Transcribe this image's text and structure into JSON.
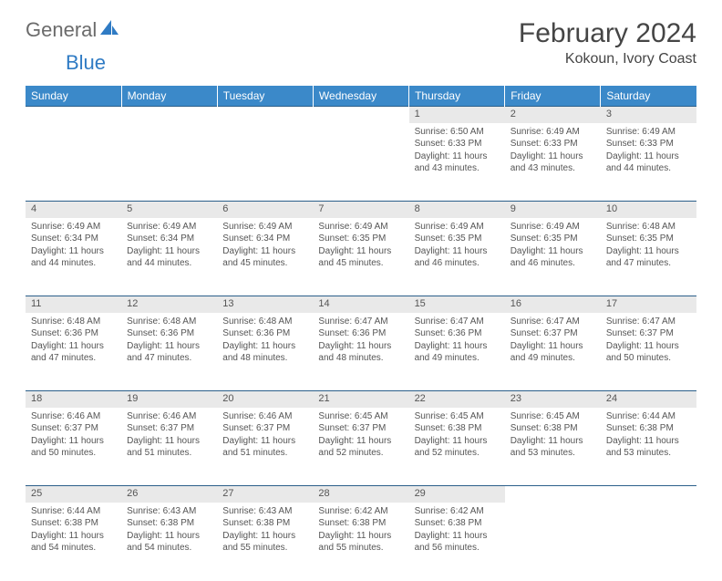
{
  "brand": {
    "general": "General",
    "blue": "Blue"
  },
  "title": "February 2024",
  "location": "Kokoun, Ivory Coast",
  "colors": {
    "header_bg": "#3b89c9",
    "header_text": "#ffffff",
    "daynum_bg": "#e9e9e9",
    "rule": "#2b5f8a",
    "body_text": "#555555",
    "title_text": "#454545",
    "logo_gray": "#6b6b6b",
    "logo_blue": "#2f7bc4"
  },
  "typography": {
    "title_fontsize": 30,
    "location_fontsize": 16,
    "dayheader_fontsize": 12,
    "daynum_fontsize": 11,
    "cell_fontsize": 10
  },
  "day_headers": [
    "Sunday",
    "Monday",
    "Tuesday",
    "Wednesday",
    "Thursday",
    "Friday",
    "Saturday"
  ],
  "weeks": [
    [
      null,
      null,
      null,
      null,
      {
        "n": "1",
        "sr": "6:50 AM",
        "ss": "6:33 PM",
        "dl": "11 hours and 43 minutes."
      },
      {
        "n": "2",
        "sr": "6:49 AM",
        "ss": "6:33 PM",
        "dl": "11 hours and 43 minutes."
      },
      {
        "n": "3",
        "sr": "6:49 AM",
        "ss": "6:33 PM",
        "dl": "11 hours and 44 minutes."
      }
    ],
    [
      {
        "n": "4",
        "sr": "6:49 AM",
        "ss": "6:34 PM",
        "dl": "11 hours and 44 minutes."
      },
      {
        "n": "5",
        "sr": "6:49 AM",
        "ss": "6:34 PM",
        "dl": "11 hours and 44 minutes."
      },
      {
        "n": "6",
        "sr": "6:49 AM",
        "ss": "6:34 PM",
        "dl": "11 hours and 45 minutes."
      },
      {
        "n": "7",
        "sr": "6:49 AM",
        "ss": "6:35 PM",
        "dl": "11 hours and 45 minutes."
      },
      {
        "n": "8",
        "sr": "6:49 AM",
        "ss": "6:35 PM",
        "dl": "11 hours and 46 minutes."
      },
      {
        "n": "9",
        "sr": "6:49 AM",
        "ss": "6:35 PM",
        "dl": "11 hours and 46 minutes."
      },
      {
        "n": "10",
        "sr": "6:48 AM",
        "ss": "6:35 PM",
        "dl": "11 hours and 47 minutes."
      }
    ],
    [
      {
        "n": "11",
        "sr": "6:48 AM",
        "ss": "6:36 PM",
        "dl": "11 hours and 47 minutes."
      },
      {
        "n": "12",
        "sr": "6:48 AM",
        "ss": "6:36 PM",
        "dl": "11 hours and 47 minutes."
      },
      {
        "n": "13",
        "sr": "6:48 AM",
        "ss": "6:36 PM",
        "dl": "11 hours and 48 minutes."
      },
      {
        "n": "14",
        "sr": "6:47 AM",
        "ss": "6:36 PM",
        "dl": "11 hours and 48 minutes."
      },
      {
        "n": "15",
        "sr": "6:47 AM",
        "ss": "6:36 PM",
        "dl": "11 hours and 49 minutes."
      },
      {
        "n": "16",
        "sr": "6:47 AM",
        "ss": "6:37 PM",
        "dl": "11 hours and 49 minutes."
      },
      {
        "n": "17",
        "sr": "6:47 AM",
        "ss": "6:37 PM",
        "dl": "11 hours and 50 minutes."
      }
    ],
    [
      {
        "n": "18",
        "sr": "6:46 AM",
        "ss": "6:37 PM",
        "dl": "11 hours and 50 minutes."
      },
      {
        "n": "19",
        "sr": "6:46 AM",
        "ss": "6:37 PM",
        "dl": "11 hours and 51 minutes."
      },
      {
        "n": "20",
        "sr": "6:46 AM",
        "ss": "6:37 PM",
        "dl": "11 hours and 51 minutes."
      },
      {
        "n": "21",
        "sr": "6:45 AM",
        "ss": "6:37 PM",
        "dl": "11 hours and 52 minutes."
      },
      {
        "n": "22",
        "sr": "6:45 AM",
        "ss": "6:38 PM",
        "dl": "11 hours and 52 minutes."
      },
      {
        "n": "23",
        "sr": "6:45 AM",
        "ss": "6:38 PM",
        "dl": "11 hours and 53 minutes."
      },
      {
        "n": "24",
        "sr": "6:44 AM",
        "ss": "6:38 PM",
        "dl": "11 hours and 53 minutes."
      }
    ],
    [
      {
        "n": "25",
        "sr": "6:44 AM",
        "ss": "6:38 PM",
        "dl": "11 hours and 54 minutes."
      },
      {
        "n": "26",
        "sr": "6:43 AM",
        "ss": "6:38 PM",
        "dl": "11 hours and 54 minutes."
      },
      {
        "n": "27",
        "sr": "6:43 AM",
        "ss": "6:38 PM",
        "dl": "11 hours and 55 minutes."
      },
      {
        "n": "28",
        "sr": "6:42 AM",
        "ss": "6:38 PM",
        "dl": "11 hours and 55 minutes."
      },
      {
        "n": "29",
        "sr": "6:42 AM",
        "ss": "6:38 PM",
        "dl": "11 hours and 56 minutes."
      },
      null,
      null
    ]
  ],
  "labels": {
    "sunrise": "Sunrise:",
    "sunset": "Sunset:",
    "daylight": "Daylight:"
  }
}
